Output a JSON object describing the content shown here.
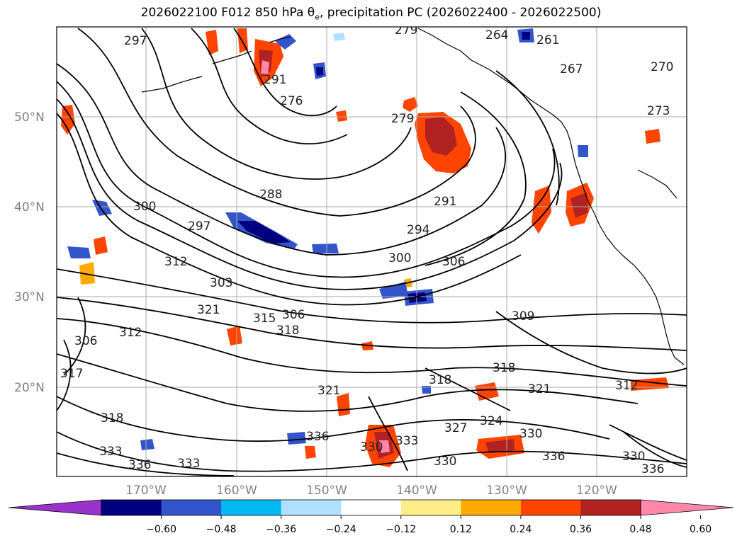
{
  "title": {
    "prefix": "2026022100 F012 850 hPa θ",
    "sub": "e",
    "suffix": ", precipitation PC (2026022400 - 2026022500)"
  },
  "lat_labels": [
    "50°N",
    "40°N",
    "30°N",
    "20°N"
  ],
  "lon_labels": [
    "170°W",
    "160°W",
    "150°W",
    "140°W",
    "130°W",
    "120°W"
  ],
  "colorbar": {
    "ticks": [
      "−0.60",
      "−0.48",
      "−0.36",
      "−0.24",
      "−0.12",
      "0.12",
      "0.24",
      "0.36",
      "0.48",
      "0.60"
    ],
    "colors": [
      "#9933cc",
      "#000080",
      "#3355cc",
      "#00bbf0",
      "#b0e0ff",
      "#ffffff",
      "#ffee88",
      "#ffaa00",
      "#ff4400",
      "#b22222",
      "#ff88aa"
    ]
  },
  "contour_labels": [
    "297",
    "279",
    "264",
    "261",
    "270",
    "291",
    "267",
    "276",
    "273",
    "279",
    "288",
    "300",
    "291",
    "297",
    "294",
    "300",
    "306",
    "303",
    "312",
    "321",
    "315",
    "306",
    "318",
    "309",
    "312",
    "306",
    "317",
    "318",
    "321",
    "318",
    "321",
    "312",
    "318",
    "324",
    "327",
    "330",
    "336",
    "330",
    "333",
    "333",
    "336",
    "333",
    "330",
    "336",
    "336",
    "330"
  ]
}
